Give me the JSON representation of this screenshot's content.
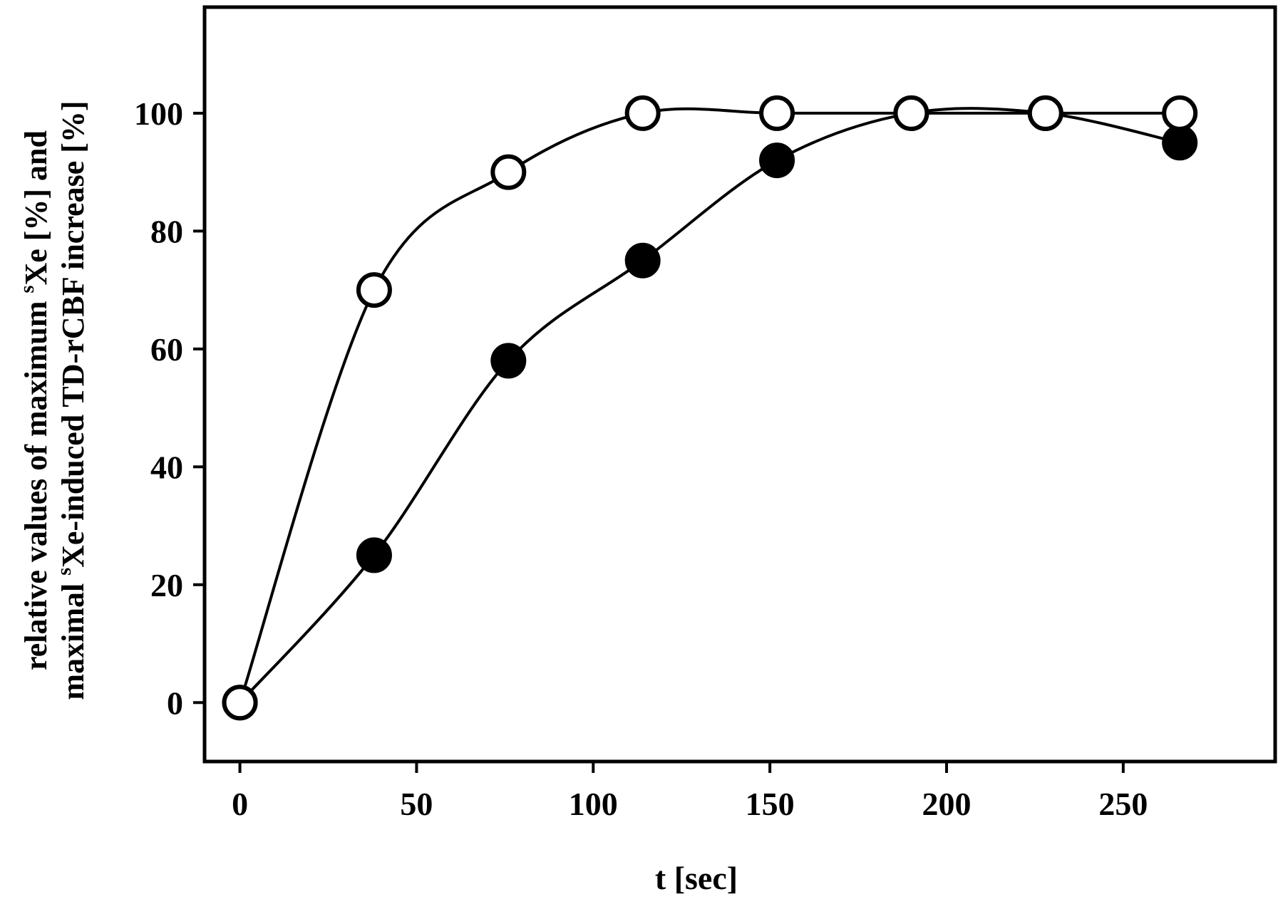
{
  "chart_data": {
    "type": "line",
    "xlabel": "t [sec]",
    "ylabel_line1": {
      "before": "relative values of maximum ",
      "sup": "s",
      "after": "Xe [%] and"
    },
    "ylabel_line2": {
      "before": "maximal ",
      "sup": "s",
      "after": "Xe-induced TD-rCBF increase [%]"
    },
    "xlim": [
      -10,
      293
    ],
    "ylim": [
      -10,
      118
    ],
    "x_ticks": [
      0,
      50,
      100,
      150,
      200,
      250
    ],
    "y_ticks": [
      0,
      20,
      40,
      60,
      80,
      100
    ],
    "grid": false,
    "legend": "none",
    "series": [
      {
        "marker": "open-circle",
        "x": [
          0,
          38,
          76,
          114,
          152,
          190,
          228,
          266
        ],
        "y": [
          0,
          70,
          90,
          100,
          100,
          100,
          100,
          100
        ]
      },
      {
        "marker": "filled-circle",
        "x": [
          0,
          38,
          76,
          114,
          152,
          190,
          228,
          266
        ],
        "y": [
          0,
          25,
          58,
          75,
          92,
          100,
          100,
          95
        ]
      }
    ],
    "colors": {
      "line": "#000000",
      "open_fill": "#ffffff",
      "filled_fill": "#000000"
    }
  }
}
